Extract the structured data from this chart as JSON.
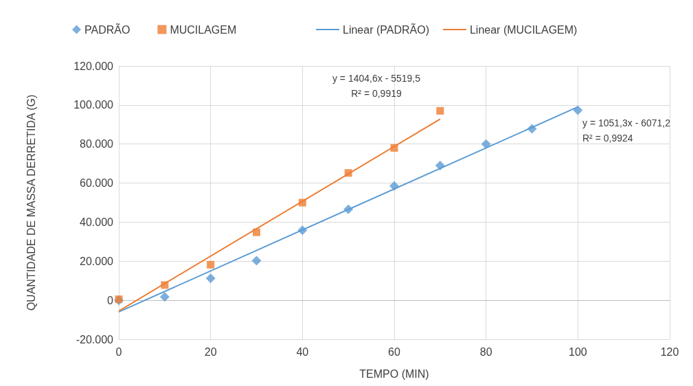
{
  "chart_data": {
    "type": "scatter",
    "xlabel": "TEMPO (MIN)",
    "ylabel": "QUANTIDADE DE MASSA DERRETIDA (G)",
    "xlim": [
      0,
      120
    ],
    "xticks": [
      0,
      20,
      40,
      60,
      80,
      100,
      120
    ],
    "ylim": [
      -20000,
      120000
    ],
    "yticks": [
      {
        "value": -20000,
        "label": "-20.000"
      },
      0,
      {
        "value": 20000,
        "label": "20.000"
      },
      {
        "value": 40000,
        "label": "40.000"
      },
      {
        "value": 60000,
        "label": "60.000"
      },
      {
        "value": 80000,
        "label": "80.000"
      },
      {
        "value": 100000,
        "label": "100.000"
      },
      {
        "value": 120000,
        "label": "120.000"
      }
    ],
    "grid": true,
    "legend": "top",
    "series": [
      {
        "name": "PADRÃO",
        "marker": "diamond",
        "color": "#5b9bd5",
        "x": [
          0,
          10,
          20,
          30,
          40,
          50,
          60,
          70,
          80,
          90,
          100
        ],
        "values": [
          0,
          1700,
          11200,
          20300,
          35800,
          46600,
          58500,
          69000,
          80000,
          87800,
          97300
        ]
      },
      {
        "name": "MUCILAGEM",
        "marker": "square",
        "color": "#ed7d31",
        "x": [
          0,
          10,
          20,
          30,
          40,
          50,
          60,
          70
        ],
        "values": [
          500,
          7800,
          18200,
          34800,
          50000,
          65200,
          78000,
          97000
        ]
      },
      {
        "name": "Linear (PADRÃO)",
        "type": "line",
        "marker": "none",
        "color": "#5b9bd5",
        "x": [
          0,
          100
        ],
        "values": [
          -6000,
          99000
        ]
      },
      {
        "name": "Linear (MUCILAGEM)",
        "type": "line",
        "marker": "none",
        "color": "#ed7d31",
        "x": [
          0,
          70
        ],
        "values": [
          -5500,
          92800
        ]
      }
    ],
    "annotations": [
      "y = 1404,6x - 5519,5\nR² = 0,9919",
      "y = 1051,3x - 6071,2\nR² = 0,9924"
    ]
  }
}
